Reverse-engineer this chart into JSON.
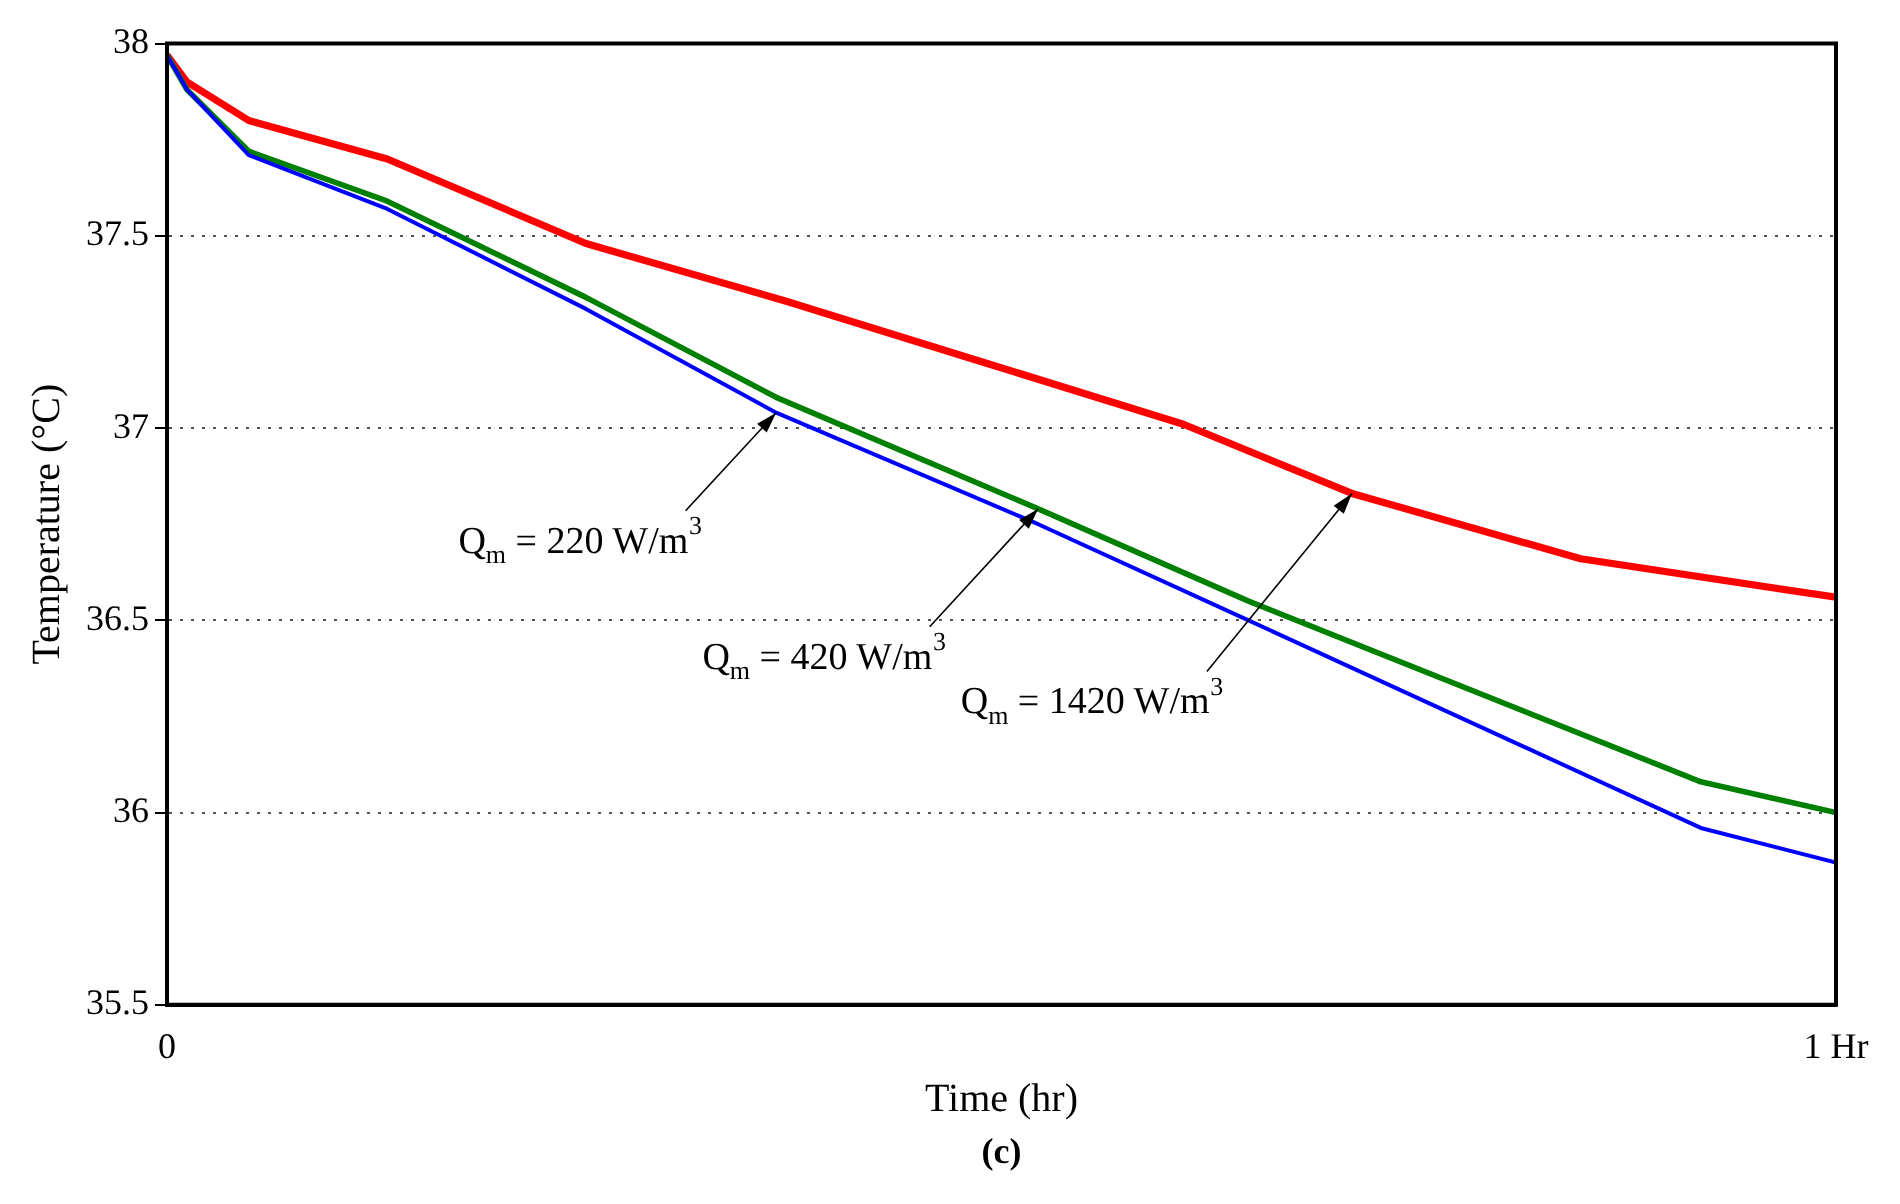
{
  "chart_data": {
    "type": "line",
    "xlabel": "Time (hr)",
    "ylabel": "Temperature (°C)",
    "x": [
      0,
      0.012,
      0.049,
      0.132,
      0.251,
      0.365,
      0.522,
      0.648,
      0.919,
      1
    ],
    "series": [
      {
        "color": "#0000ff",
        "values": [
          37.97,
          37.88,
          37.71,
          37.57,
          37.31,
          37.04,
          36.75,
          36.5,
          35.96,
          35.87
        ]
      },
      {
        "color": "#008000",
        "values": [
          37.97,
          37.88,
          37.72,
          37.59,
          37.34,
          37.08,
          36.79,
          36.55,
          36.08,
          36.0
        ]
      },
      {
        "color": "#ff0000",
        "x": [
          0,
          0.012,
          0.049,
          0.132,
          0.251,
          0.371,
          0.49,
          0.609,
          0.71,
          0.847,
          1
        ],
        "values": [
          37.97,
          37.9,
          37.8,
          37.7,
          37.48,
          37.33,
          37.17,
          37.01,
          36.83,
          36.66,
          36.56
        ]
      }
    ],
    "xlim": [
      0,
      1
    ],
    "xticks": [
      {
        "value": 0,
        "label": "0"
      },
      {
        "value": 1,
        "label": "1 Hr"
      }
    ],
    "ylim": [
      35.5,
      38
    ],
    "yticks": [
      35.5,
      36,
      36.5,
      37,
      37.5,
      38
    ],
    "grid": "y",
    "legend": false,
    "marker": "none",
    "line_style": "solid",
    "annotations": [
      {
        "text": "Q$_{m}$ = 220 W/m$^{3}$",
        "x": 0.365,
        "y": 37.04
      },
      {
        "text": "Q$_{m}$ = 420 W/m$^{3}$",
        "x": 0.522,
        "y": 36.79
      },
      {
        "text": "Q$_{m}$ = 1420 W/m$^{3}$",
        "x": 0.71,
        "y": 36.83
      },
      "(c)"
    ]
  }
}
